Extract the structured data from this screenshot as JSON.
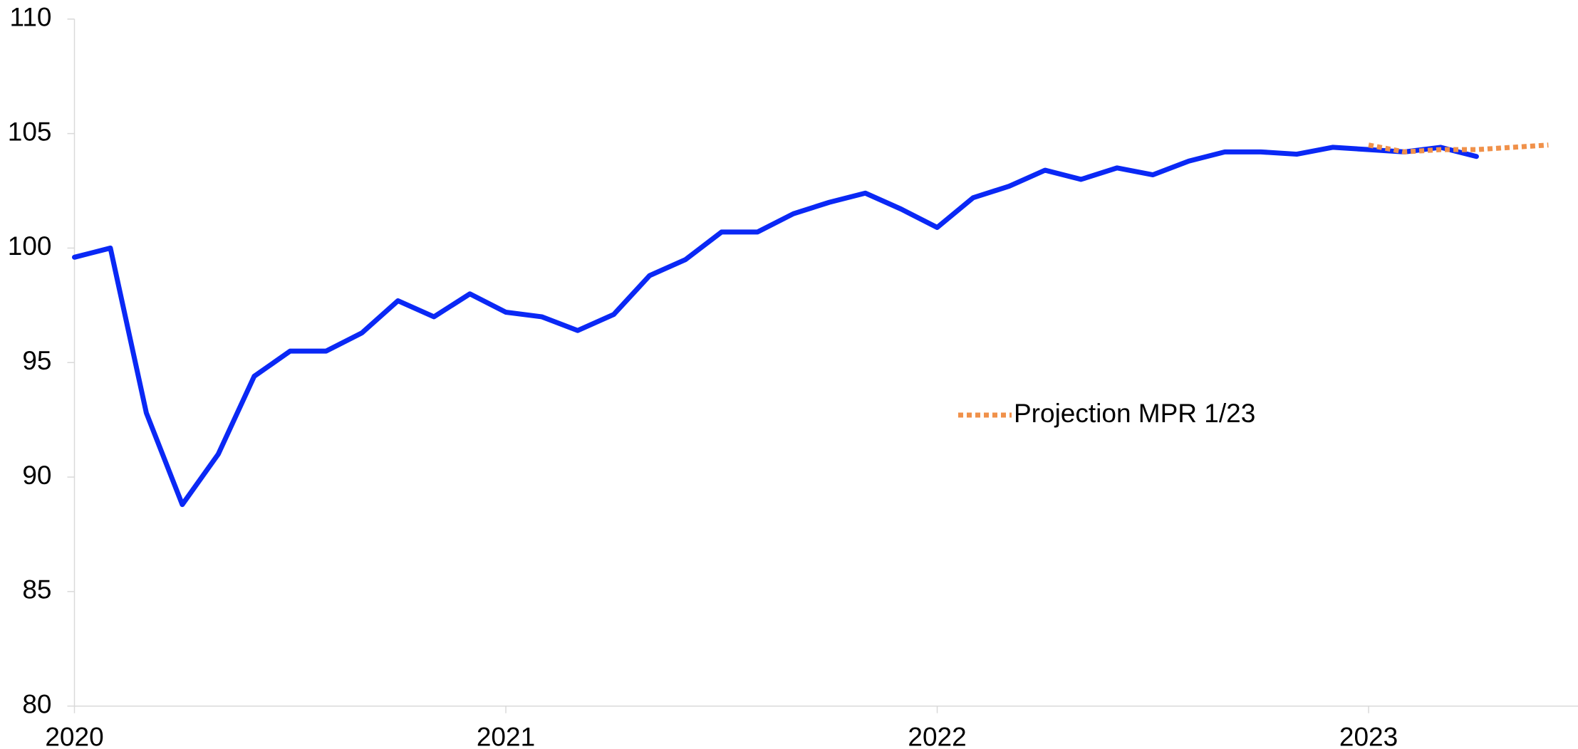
{
  "chart_data": {
    "type": "line",
    "categories": [
      "2020",
      null,
      null,
      null,
      null,
      null,
      null,
      null,
      null,
      null,
      null,
      null,
      "2021",
      null,
      null,
      null,
      null,
      null,
      null,
      null,
      null,
      null,
      null,
      null,
      "2022",
      null,
      null,
      null,
      null,
      null,
      null,
      null,
      null,
      null,
      null,
      null,
      "2023",
      null,
      null,
      null,
      null,
      null
    ],
    "series": [
      {
        "color": "#0a28f5",
        "style": "solid",
        "values": [
          99.6,
          100.0,
          92.8,
          88.8,
          91.0,
          94.4,
          95.5,
          95.5,
          96.3,
          97.7,
          97.0,
          98.0,
          97.2,
          97.0,
          96.4,
          97.1,
          98.8,
          99.5,
          100.7,
          100.7,
          101.5,
          102.0,
          102.4,
          101.7,
          100.9,
          102.2,
          102.7,
          103.4,
          103.0,
          103.5,
          103.2,
          103.8,
          104.2,
          104.2,
          104.1,
          104.4,
          104.3,
          104.2,
          104.4,
          104.0,
          null,
          null
        ]
      },
      {
        "name": "Projection MPR 1/23",
        "color": "#f0914a",
        "style": "dotted",
        "values": [
          null,
          null,
          null,
          null,
          null,
          null,
          null,
          null,
          null,
          null,
          null,
          null,
          null,
          null,
          null,
          null,
          null,
          null,
          null,
          null,
          null,
          null,
          null,
          null,
          null,
          null,
          null,
          null,
          null,
          null,
          null,
          null,
          null,
          null,
          null,
          null,
          104.5,
          104.2,
          104.3,
          104.3,
          104.4,
          104.5
        ]
      }
    ],
    "ylim": [
      80,
      110
    ],
    "yticks": [
      80,
      85,
      90,
      95,
      100,
      105,
      110
    ],
    "grid": false
  }
}
